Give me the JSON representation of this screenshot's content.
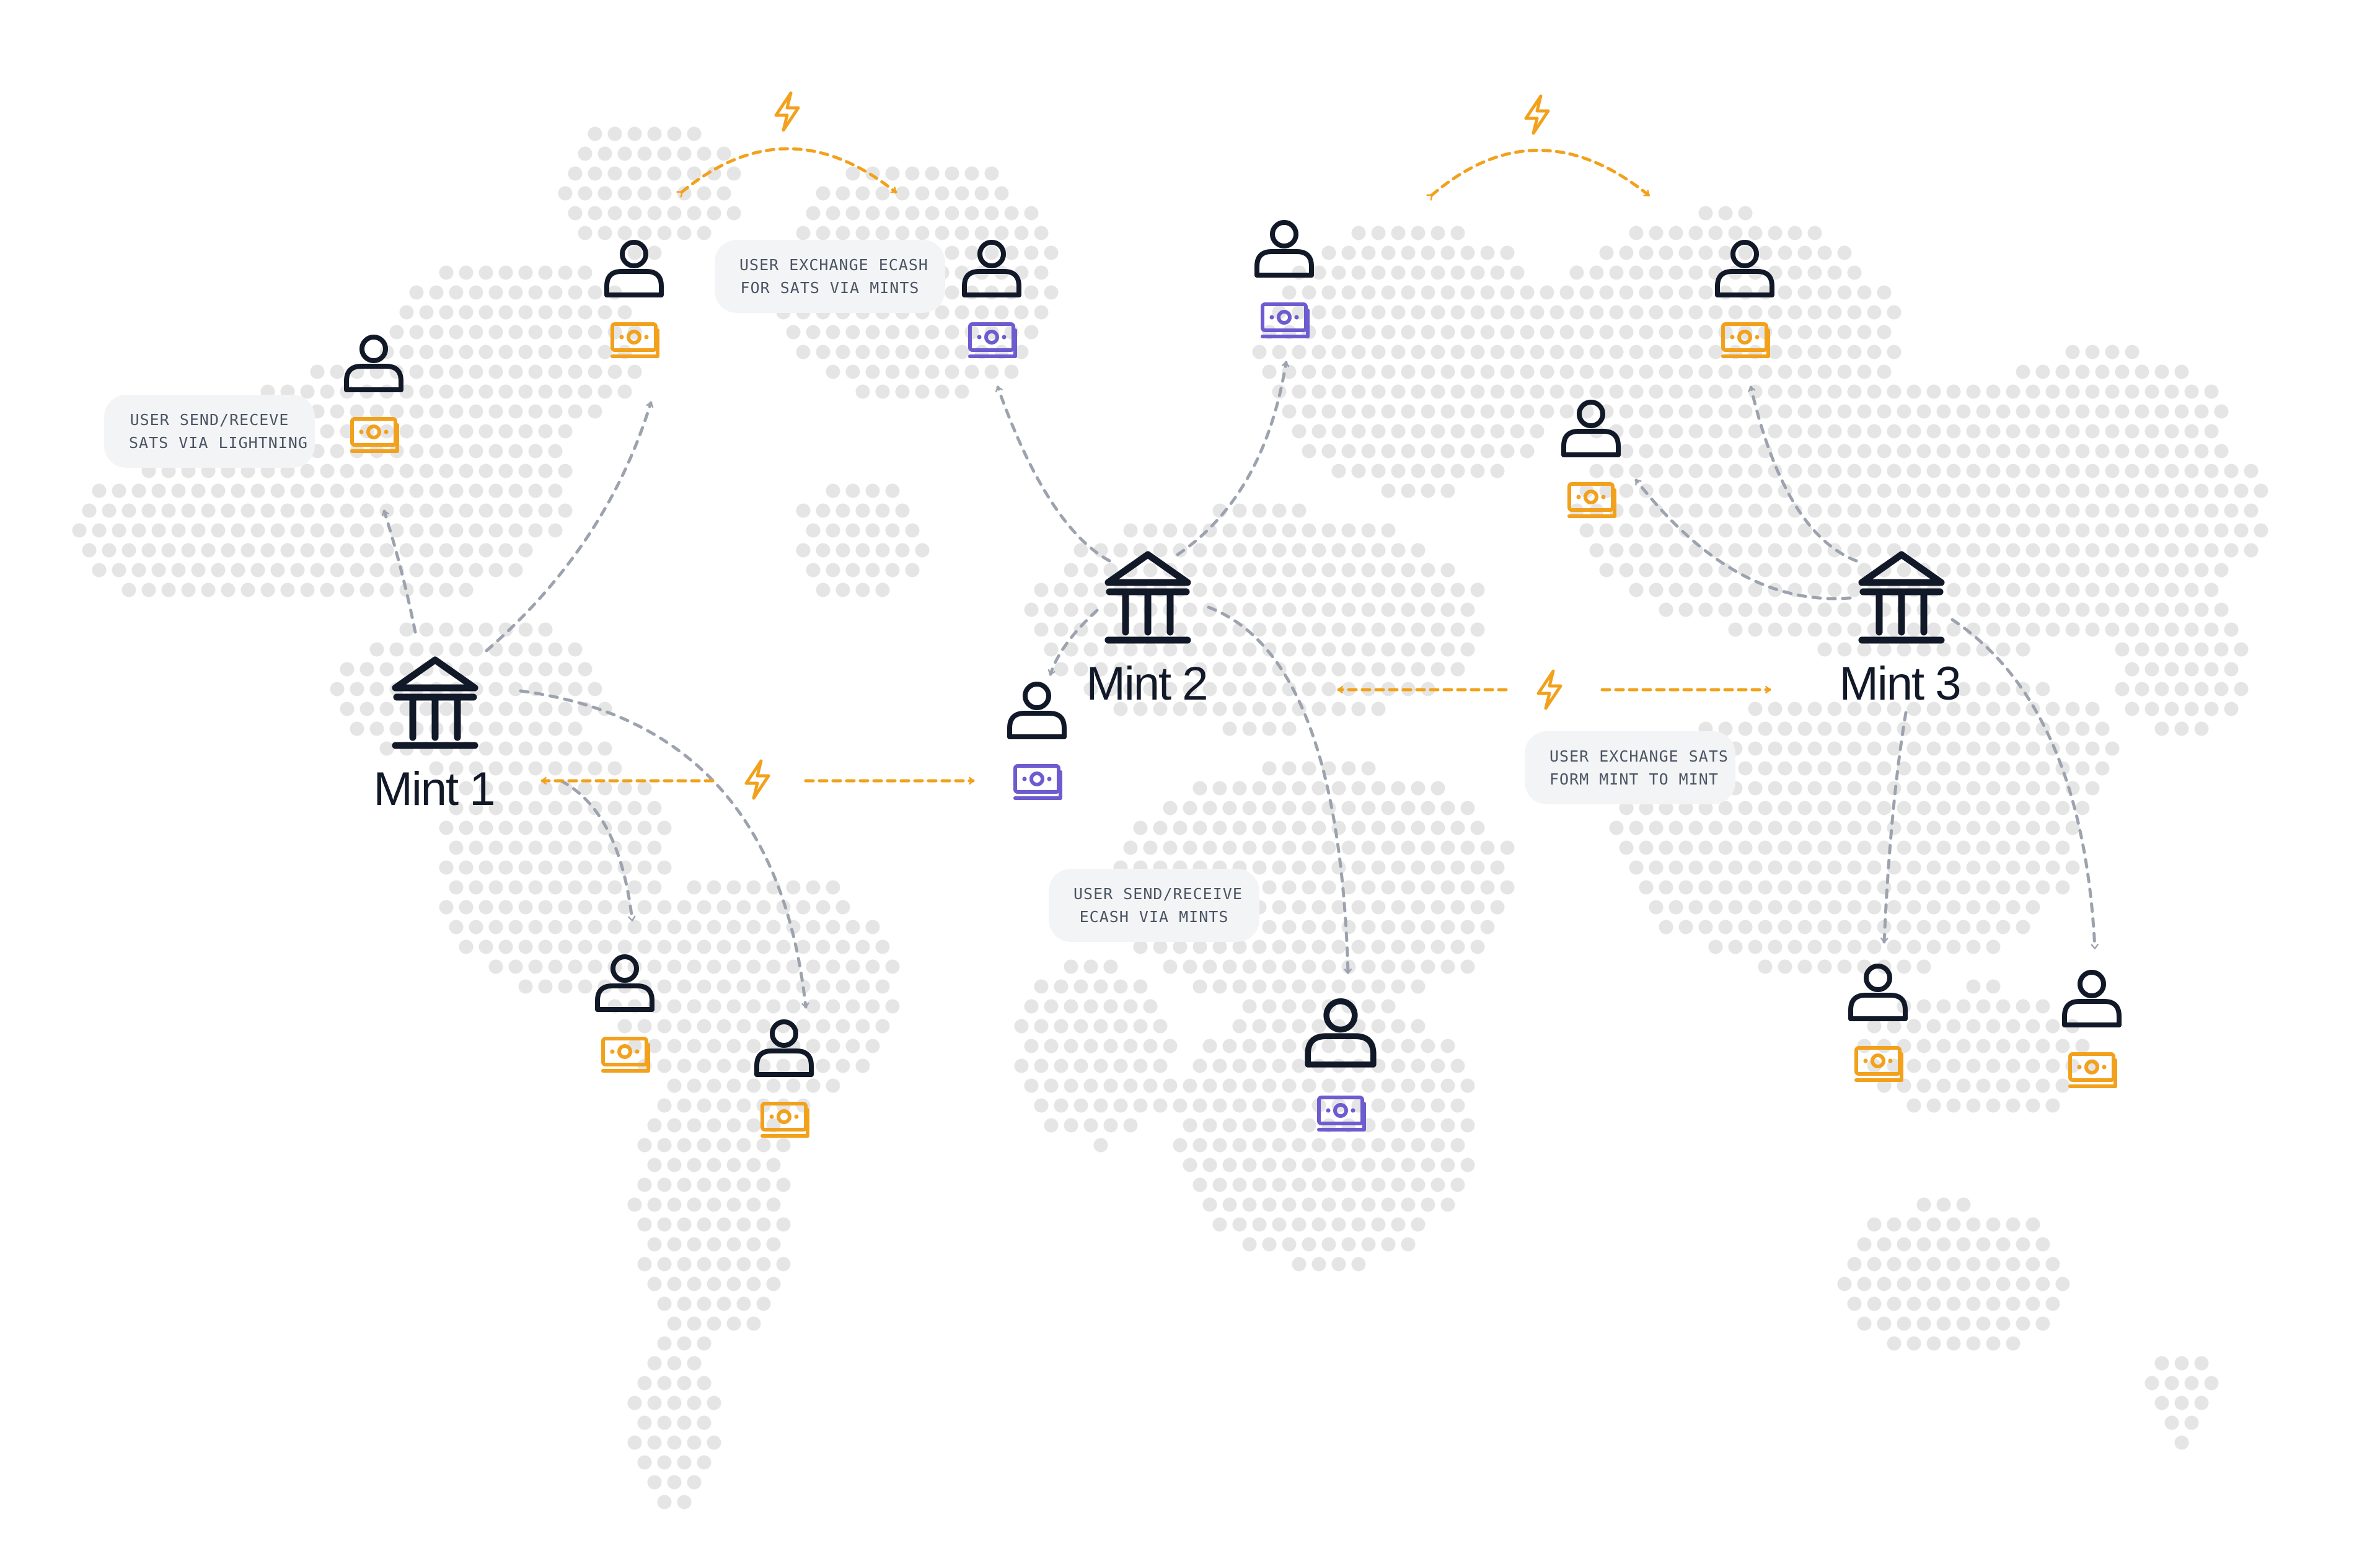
{
  "colors": {
    "dot": "#e5e5e5",
    "ink": "#111827",
    "lightning": "#f2a11c",
    "ecash_orange": "#f2a11c",
    "ecash_purple": "#6d5bd0",
    "arrow_gray": "#9ca3af",
    "note_bg": "#f3f4f6"
  },
  "mints": [
    {
      "id": "mint1",
      "label": "Mint 1"
    },
    {
      "id": "mint2",
      "label": "Mint 2"
    },
    {
      "id": "mint3",
      "label": "Mint 3"
    }
  ],
  "notes": {
    "send_lightning": {
      "line1": "USER SEND/RECEVE",
      "line2": "SATS VIA LIGHTNING"
    },
    "exchange_ecash": {
      "line1": "USER EXCHANGE ECASH",
      "line2": "FOR SATS VIA MINTS"
    },
    "send_ecash": {
      "line1": "USER SEND/RECEIVE",
      "line2": "ECASH VIA MINTS"
    },
    "exchange_sats": {
      "line1": "USER EXCHANGE SATS",
      "line2": "FORM MINT TO MINT"
    }
  },
  "icons": {
    "mint": "bank-building-icon",
    "user": "user-icon",
    "ecash": "banknote-icon",
    "lightning": "lightning-bolt-icon"
  }
}
